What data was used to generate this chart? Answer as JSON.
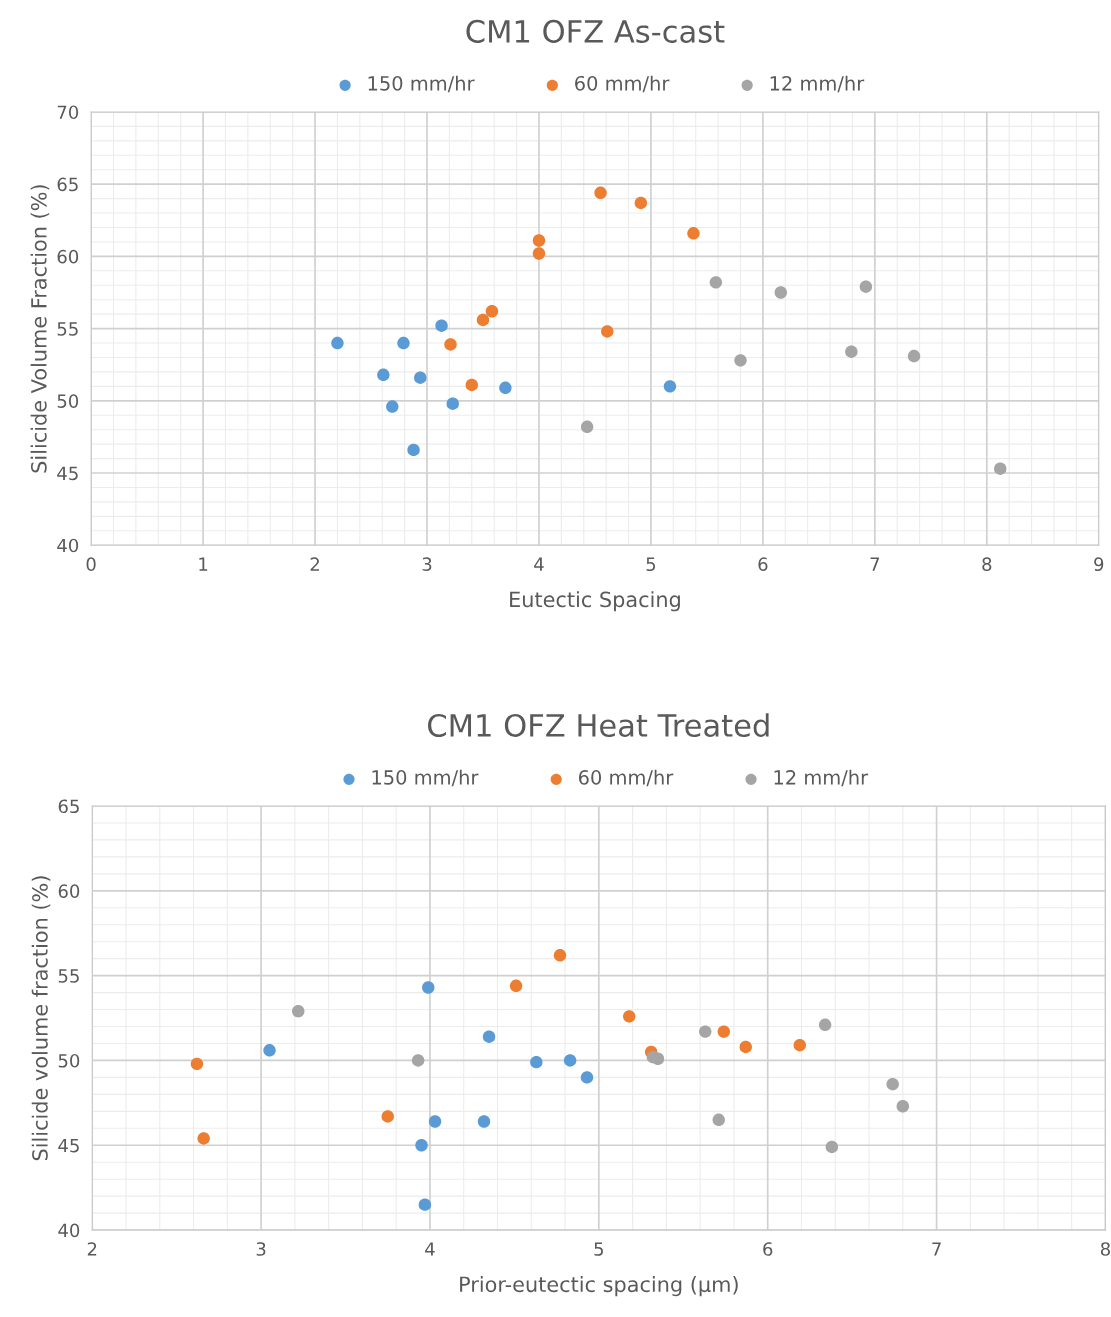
{
  "chart_data": [
    {
      "type": "scatter",
      "title": "CM1 OFZ As-cast",
      "xlabel": "Eutectic Spacing",
      "ylabel": "Silicide Volume Fraction (%)",
      "xlim": [
        0,
        9
      ],
      "ylim": [
        40,
        70
      ],
      "xticks": [
        0,
        1,
        2,
        3,
        4,
        5,
        6,
        7,
        8,
        9
      ],
      "yticks": [
        40,
        45,
        50,
        55,
        60,
        65,
        70
      ],
      "grid": true,
      "legend": "top",
      "marker": "circle",
      "series": [
        {
          "name": "150 mm/hr",
          "color": "#5b9bd5",
          "x": [
            2.2,
            2.79,
            2.61,
            2.94,
            2.69,
            3.13,
            3.23,
            2.88,
            3.7,
            5.17
          ],
          "values": [
            54.0,
            54.0,
            51.8,
            51.6,
            49.6,
            55.2,
            49.8,
            46.6,
            50.9,
            51.0
          ]
        },
        {
          "name": "60 mm/hr",
          "color": "#ed7d31",
          "x": [
            4.55,
            4.91,
            4.0,
            4.0,
            5.38,
            3.58,
            3.5,
            3.21,
            4.61,
            3.4
          ],
          "values": [
            64.4,
            63.7,
            61.1,
            60.2,
            61.6,
            56.2,
            55.6,
            53.9,
            54.8,
            51.1
          ]
        },
        {
          "name": "12 mm/hr",
          "color": "#a5a5a5",
          "x": [
            5.58,
            6.16,
            6.92,
            5.8,
            6.79,
            7.35,
            4.43,
            8.12
          ],
          "values": [
            58.2,
            57.5,
            57.9,
            52.8,
            53.4,
            53.1,
            48.2,
            45.3
          ]
        }
      ]
    },
    {
      "type": "scatter",
      "title": "CM1 OFZ Heat Treated",
      "xlabel": "Prior-eutectic spacing (µm)",
      "ylabel": "Silicide volume fraction (%)",
      "xlim": [
        2,
        8
      ],
      "ylim": [
        40,
        65
      ],
      "xticks": [
        2,
        3,
        4,
        5,
        6,
        7,
        8
      ],
      "yticks": [
        40,
        45,
        50,
        55,
        60,
        65
      ],
      "grid": true,
      "legend": "top",
      "marker": "circle",
      "series": [
        {
          "name": "150 mm/hr",
          "color": "#5b9bd5",
          "x": [
            3.99,
            3.05,
            4.35,
            4.63,
            4.83,
            4.93,
            4.03,
            4.32,
            3.95,
            3.97
          ],
          "values": [
            54.3,
            50.6,
            51.4,
            49.9,
            50.0,
            49.0,
            46.4,
            46.4,
            45.0,
            41.5
          ]
        },
        {
          "name": "60 mm/hr",
          "color": "#ed7d31",
          "x": [
            4.77,
            4.51,
            5.18,
            5.74,
            5.31,
            5.87,
            6.19,
            2.62,
            3.75,
            2.66
          ],
          "values": [
            56.2,
            54.4,
            52.6,
            51.7,
            50.5,
            50.8,
            50.9,
            49.8,
            46.7,
            45.4
          ]
        },
        {
          "name": "12 mm/hr",
          "color": "#a5a5a5",
          "x": [
            3.22,
            3.93,
            5.32,
            5.35,
            5.63,
            6.34,
            6.74,
            6.8,
            5.71,
            6.38
          ],
          "values": [
            52.9,
            50.0,
            50.2,
            50.1,
            51.7,
            52.1,
            48.6,
            47.3,
            46.5,
            44.9
          ]
        }
      ]
    }
  ]
}
